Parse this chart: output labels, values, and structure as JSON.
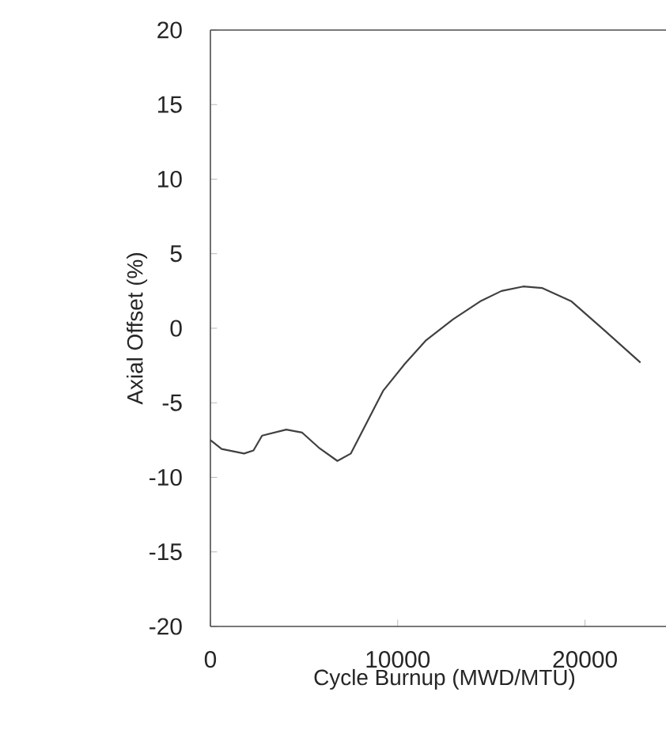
{
  "chart_data": {
    "type": "line",
    "xlabel": "Cycle Burnup (MWD/MTU)",
    "ylabel": "Axial Offset (%)",
    "xlim": [
      0,
      25000
    ],
    "ylim": [
      -20,
      20
    ],
    "xticks": [
      0,
      10000,
      20000
    ],
    "yticks": [
      -20,
      -15,
      -10,
      -5,
      0,
      5,
      10,
      15,
      20
    ],
    "line_style": "solid",
    "x": [
      0,
      600,
      1800,
      2300,
      2760,
      4050,
      4900,
      5780,
      6780,
      7500,
      8360,
      9220,
      10370,
      11520,
      12960,
      14400,
      15540,
      16700,
      17700,
      19280,
      21000,
      22960
    ],
    "series": [
      {
        "color": "#404040",
        "values": [
          -7.5,
          -8.1,
          -8.4,
          -8.2,
          -7.2,
          -6.8,
          -7.0,
          -8.0,
          -8.9,
          -8.4,
          -6.3,
          -4.2,
          -2.4,
          -0.8,
          0.6,
          1.8,
          2.5,
          2.8,
          2.7,
          1.8,
          -0.1,
          -2.3
        ]
      }
    ]
  }
}
